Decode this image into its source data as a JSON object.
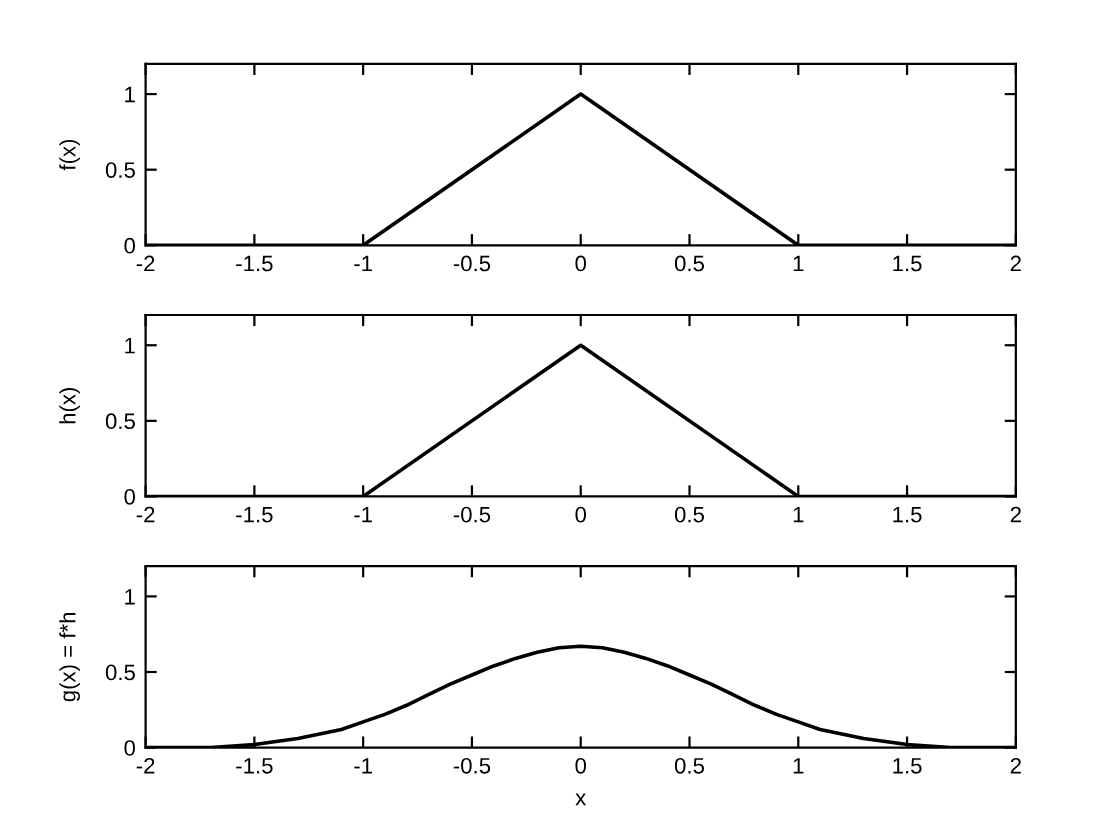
{
  "chart_data": [
    {
      "type": "line",
      "ylabel": "f(x)",
      "x": [
        -2,
        -1,
        0,
        1,
        2
      ],
      "series": [
        {
          "color": "#000000",
          "values": [
            0,
            0,
            1,
            0,
            0
          ]
        }
      ],
      "xlim": [
        -2,
        2
      ],
      "ylim": [
        0,
        1.2
      ],
      "xticks": [
        -2,
        -1.5,
        -1,
        -0.5,
        0,
        0.5,
        1,
        1.5,
        2
      ],
      "yticks": [
        0,
        0.5,
        1
      ]
    },
    {
      "type": "line",
      "ylabel": "h(x)",
      "x": [
        -2,
        -1,
        0,
        1,
        2
      ],
      "series": [
        {
          "color": "#000000",
          "values": [
            0,
            0,
            1,
            0,
            0
          ]
        }
      ],
      "xlim": [
        -2,
        2
      ],
      "ylim": [
        0,
        1.2
      ],
      "xticks": [
        -2,
        -1.5,
        -1,
        -0.5,
        0,
        0.5,
        1,
        1.5,
        2
      ],
      "yticks": [
        0,
        0.5,
        1
      ]
    },
    {
      "type": "line",
      "xlabel": "x",
      "ylabel": "g(x) = f*h",
      "x": [
        -2,
        -1.9,
        -1.8,
        -1.7,
        -1.6,
        -1.5,
        -1.4,
        -1.3,
        -1.2,
        -1.1,
        -1,
        -0.9,
        -0.8,
        -0.7,
        -0.6,
        -0.5,
        -0.4,
        -0.3,
        -0.2,
        -0.1,
        0,
        0.1,
        0.2,
        0.3,
        0.4,
        0.5,
        0.6,
        0.7,
        0.8,
        0.9,
        1,
        1.1,
        1.2,
        1.3,
        1.4,
        1.5,
        1.6,
        1.7,
        1.8,
        1.9,
        2
      ],
      "series": [
        {
          "color": "#000000",
          "values": [
            0,
            0,
            0,
            0,
            0.01,
            0.02,
            0.04,
            0.06,
            0.09,
            0.12,
            0.17,
            0.22,
            0.28,
            0.35,
            0.42,
            0.48,
            0.54,
            0.59,
            0.63,
            0.66,
            0.67,
            0.66,
            0.63,
            0.59,
            0.54,
            0.48,
            0.42,
            0.35,
            0.28,
            0.22,
            0.17,
            0.12,
            0.09,
            0.06,
            0.04,
            0.02,
            0.01,
            0,
            0,
            0,
            0
          ]
        }
      ],
      "xlim": [
        -2,
        2
      ],
      "ylim": [
        0,
        1.2
      ],
      "xticks": [
        -2,
        -1.5,
        -1,
        -0.5,
        0,
        0.5,
        1,
        1.5,
        2
      ],
      "yticks": [
        0,
        0.5,
        1
      ]
    }
  ]
}
